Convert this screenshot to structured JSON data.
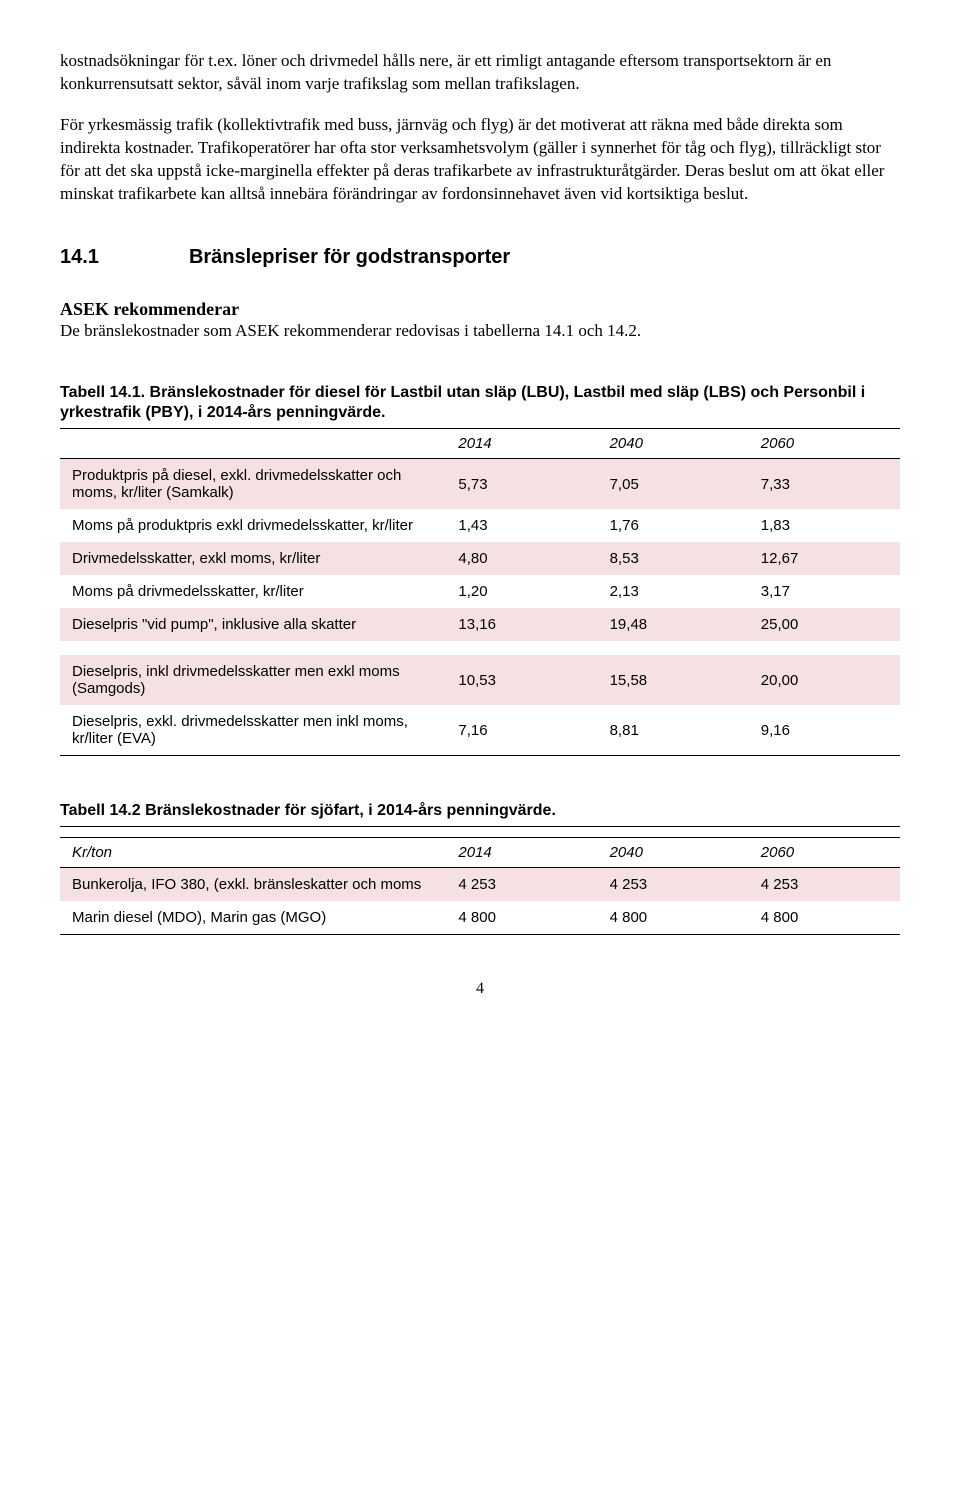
{
  "paragraphs": {
    "p1": "kostnadsökningar för t.ex. löner och drivmedel hålls nere, är ett rimligt antagande eftersom transportsektorn är en konkurrensutsatt sektor, såväl inom varje trafikslag som mellan trafikslagen.",
    "p2": "För yrkesmässig trafik (kollektivtrafik med buss, järnväg och flyg) är det motiverat att räkna med både direkta som indirekta kostnader. Trafikoperatörer har ofta stor verksamhetsvolym (gäller i synnerhet för tåg och flyg), tillräckligt stor för att det ska uppstå icke-marginella effekter på deras trafikarbete av infrastrukturåtgärder. Deras beslut om att ökat eller minskat trafikarbete kan alltså innebära förändringar av fordonsinnehavet även vid kortsiktiga beslut."
  },
  "section": {
    "number": "14.1",
    "title": "Bränslepriser för godstransporter"
  },
  "asek": {
    "heading": "ASEK rekommenderar",
    "text": "De bränslekostnader som ASEK rekommenderar redovisas i tabellerna 14.1 och 14.2."
  },
  "table1": {
    "caption": "Tabell 14.1. Bränslekostnader för diesel för Lastbil utan släp (LBU), Lastbil med släp (LBS) och Personbil i yrkestrafik (PBY), i 2014-års penningvärde.",
    "headers": [
      "",
      "2014",
      "2040",
      "2060"
    ],
    "rows": [
      {
        "shaded": true,
        "label": "Produktpris på diesel, exkl. drivmedelsskatter och moms, kr/liter (Samkalk)",
        "c": [
          "5,73",
          "7,05",
          "7,33"
        ]
      },
      {
        "shaded": false,
        "label": "Moms på produktpris exkl drivmedelsskatter, kr/liter",
        "c": [
          "1,43",
          "1,76",
          "1,83"
        ]
      },
      {
        "shaded": true,
        "label": "Drivmedelsskatter, exkl moms, kr/liter",
        "c": [
          "4,80",
          "8,53",
          "12,67"
        ]
      },
      {
        "shaded": false,
        "label": "Moms på drivmedelsskatter, kr/liter",
        "c": [
          "1,20",
          "2,13",
          "3,17"
        ]
      },
      {
        "shaded": true,
        "label": "Dieselpris \"vid pump\", inklusive alla skatter",
        "c": [
          "13,16",
          "19,48",
          "25,00"
        ]
      }
    ],
    "rows_after_gap": [
      {
        "shaded": true,
        "label": "Dieselpris, inkl drivmedelsskatter men exkl moms (Samgods)",
        "c": [
          "10,53",
          "15,58",
          "20,00"
        ]
      },
      {
        "shaded": false,
        "label": "Dieselpris, exkl. drivmedelsskatter men inkl moms, kr/liter (EVA)",
        "c": [
          "7,16",
          "8,81",
          "9,16"
        ]
      }
    ]
  },
  "table2": {
    "caption": "Tabell 14.2  Bränslekostnader för sjöfart, i 2014-års penningvärde.",
    "headers": [
      "Kr/ton",
      "2014",
      "2040",
      "2060"
    ],
    "rows": [
      {
        "shaded": true,
        "label": "Bunkerolja, IFO 380, (exkl. bränsleskatter och moms",
        "c": [
          "4 253",
          "4 253",
          "4 253"
        ]
      },
      {
        "shaded": false,
        "label": "Marin diesel (MDO), Marin gas (MGO)",
        "c": [
          "4 800",
          "4 800",
          "4 800"
        ]
      }
    ]
  },
  "page_number": "4",
  "colors": {
    "shaded_bg": "#f5e1e1",
    "text": "#000000",
    "background": "#ffffff"
  }
}
